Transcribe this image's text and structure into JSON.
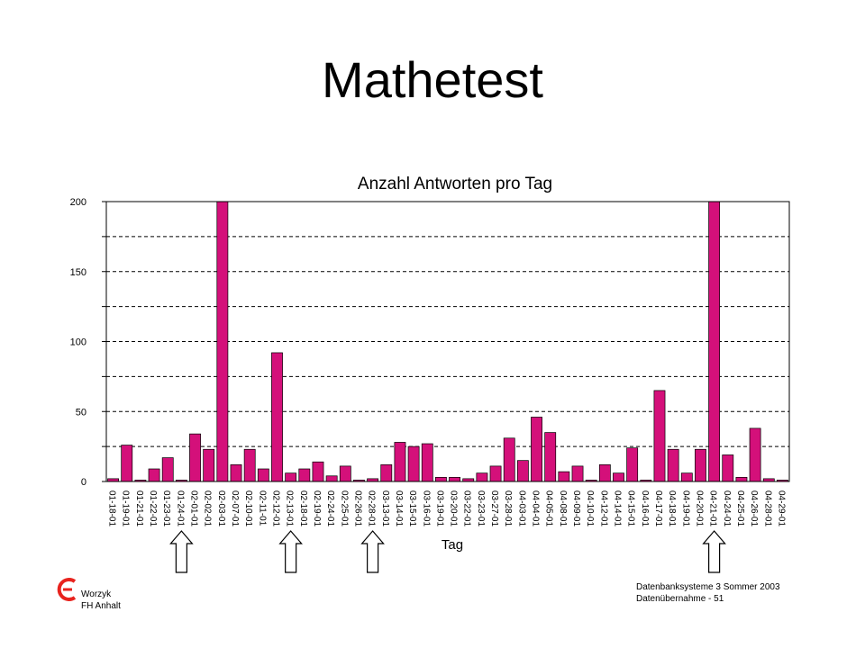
{
  "slide": {
    "title": "Mathetest",
    "footer_author": "Worzyk",
    "footer_institution": "FH Anhalt",
    "footer_course": "Datenbanksysteme 3  Sommer 2003",
    "footer_slide": "Datenübernahme - 51"
  },
  "colors": {
    "bar": "#d4107a",
    "logo": "#e8231e"
  },
  "chart_data": {
    "type": "bar",
    "title": "Anzahl Antworten pro Tag",
    "xlabel": "Tag",
    "ylabel": "",
    "ylim": [
      0,
      200
    ],
    "yticks": [
      0,
      50,
      100,
      150,
      200
    ],
    "grid": "horizontal dashed every 25",
    "legend": "none",
    "categories": [
      "01-18-01",
      "01-19-01",
      "01-21-01",
      "01-22-01",
      "01-23-01",
      "01-24-01",
      "02-01-01",
      "02-02-01",
      "02-03-01",
      "02-07-01",
      "02-10-01",
      "02-11-01",
      "02-12-01",
      "02-13-01",
      "02-18-01",
      "02-19-01",
      "02-24-01",
      "02-25-01",
      "02-26-01",
      "02-28-01",
      "03-13-01",
      "03-14-01",
      "03-15-01",
      "03-16-01",
      "03-19-01",
      "03-20-01",
      "03-22-01",
      "03-23-01",
      "03-27-01",
      "03-28-01",
      "04-03-01",
      "04-04-01",
      "04-05-01",
      "04-08-01",
      "04-09-01",
      "04-10-01",
      "04-12-01",
      "04-14-01",
      "04-15-01",
      "04-16-01",
      "04-17-01",
      "04-18-01",
      "04-19-01",
      "04-20-01",
      "04-21-01",
      "04-24-01",
      "04-25-01",
      "04-26-01",
      "04-28-01",
      "04-29-01"
    ],
    "values": [
      2,
      26,
      1,
      9,
      17,
      1,
      34,
      23,
      200,
      12,
      23,
      9,
      92,
      6,
      9,
      14,
      4,
      11,
      1,
      2,
      12,
      28,
      25,
      27,
      3,
      3,
      2,
      6,
      11,
      31,
      15,
      46,
      35,
      7,
      11,
      1,
      12,
      6,
      24,
      1,
      65,
      23,
      6,
      23,
      200,
      19,
      3,
      38,
      2,
      1
    ],
    "arrows_under": [
      "01-24-01",
      "02-13-01",
      "02-28-01",
      "04-21-01"
    ]
  }
}
